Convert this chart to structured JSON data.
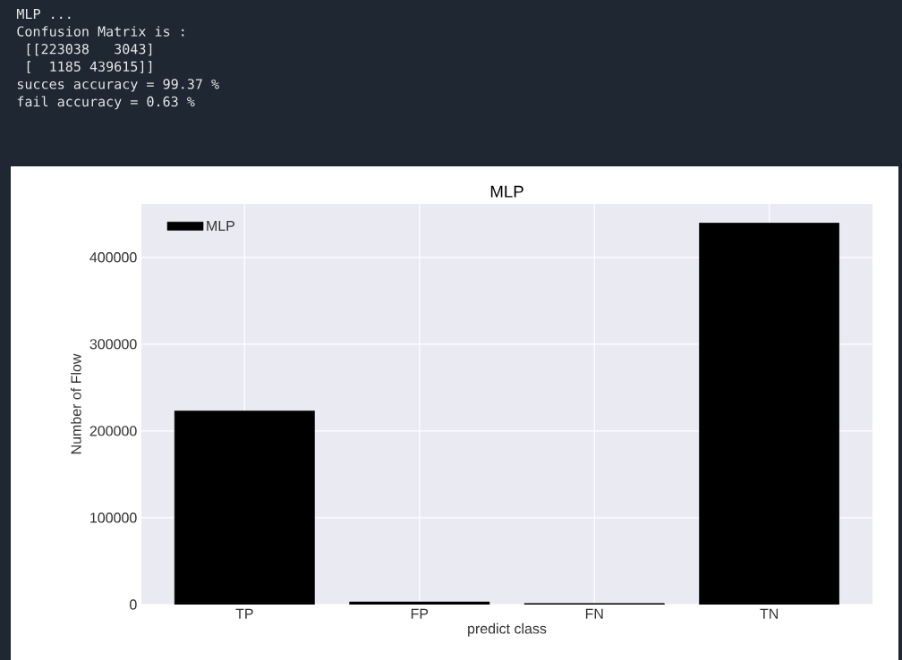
{
  "chart_data": {
    "type": "bar",
    "title": "MLP",
    "xlabel": "predict class",
    "ylabel": "Number of Flow",
    "categories": [
      "TP",
      "FP",
      "FN",
      "TN"
    ],
    "series": [
      {
        "name": "MLP",
        "color": "#000000",
        "values": [
          223038,
          3043,
          1185,
          439615
        ]
      }
    ],
    "ylim": [
      0,
      461596
    ],
    "yticks": [
      0,
      100000,
      200000,
      300000,
      400000
    ],
    "grid": true,
    "legend": "top left",
    "annotations": [
      "MLP ...",
      "Confusion Matrix is :",
      " [[223038   3043]",
      " [  1185 439615]]",
      "succes accuracy = 99.37 %",
      "fail accuracy = 0.63 %"
    ]
  }
}
